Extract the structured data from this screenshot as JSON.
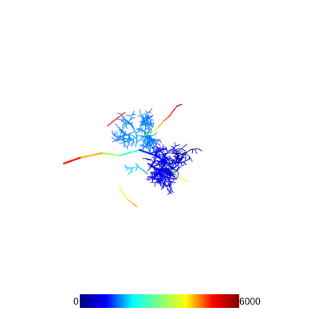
{
  "colorbar": {
    "min_label": "0",
    "max_label": "6000",
    "min_value": 0,
    "max_value": 6000,
    "colormap": "jet",
    "stops": [
      "#00007f",
      "#0000ff",
      "#00ffff",
      "#7fff7f",
      "#ffff00",
      "#ff0000",
      "#7f0000"
    ]
  }
}
